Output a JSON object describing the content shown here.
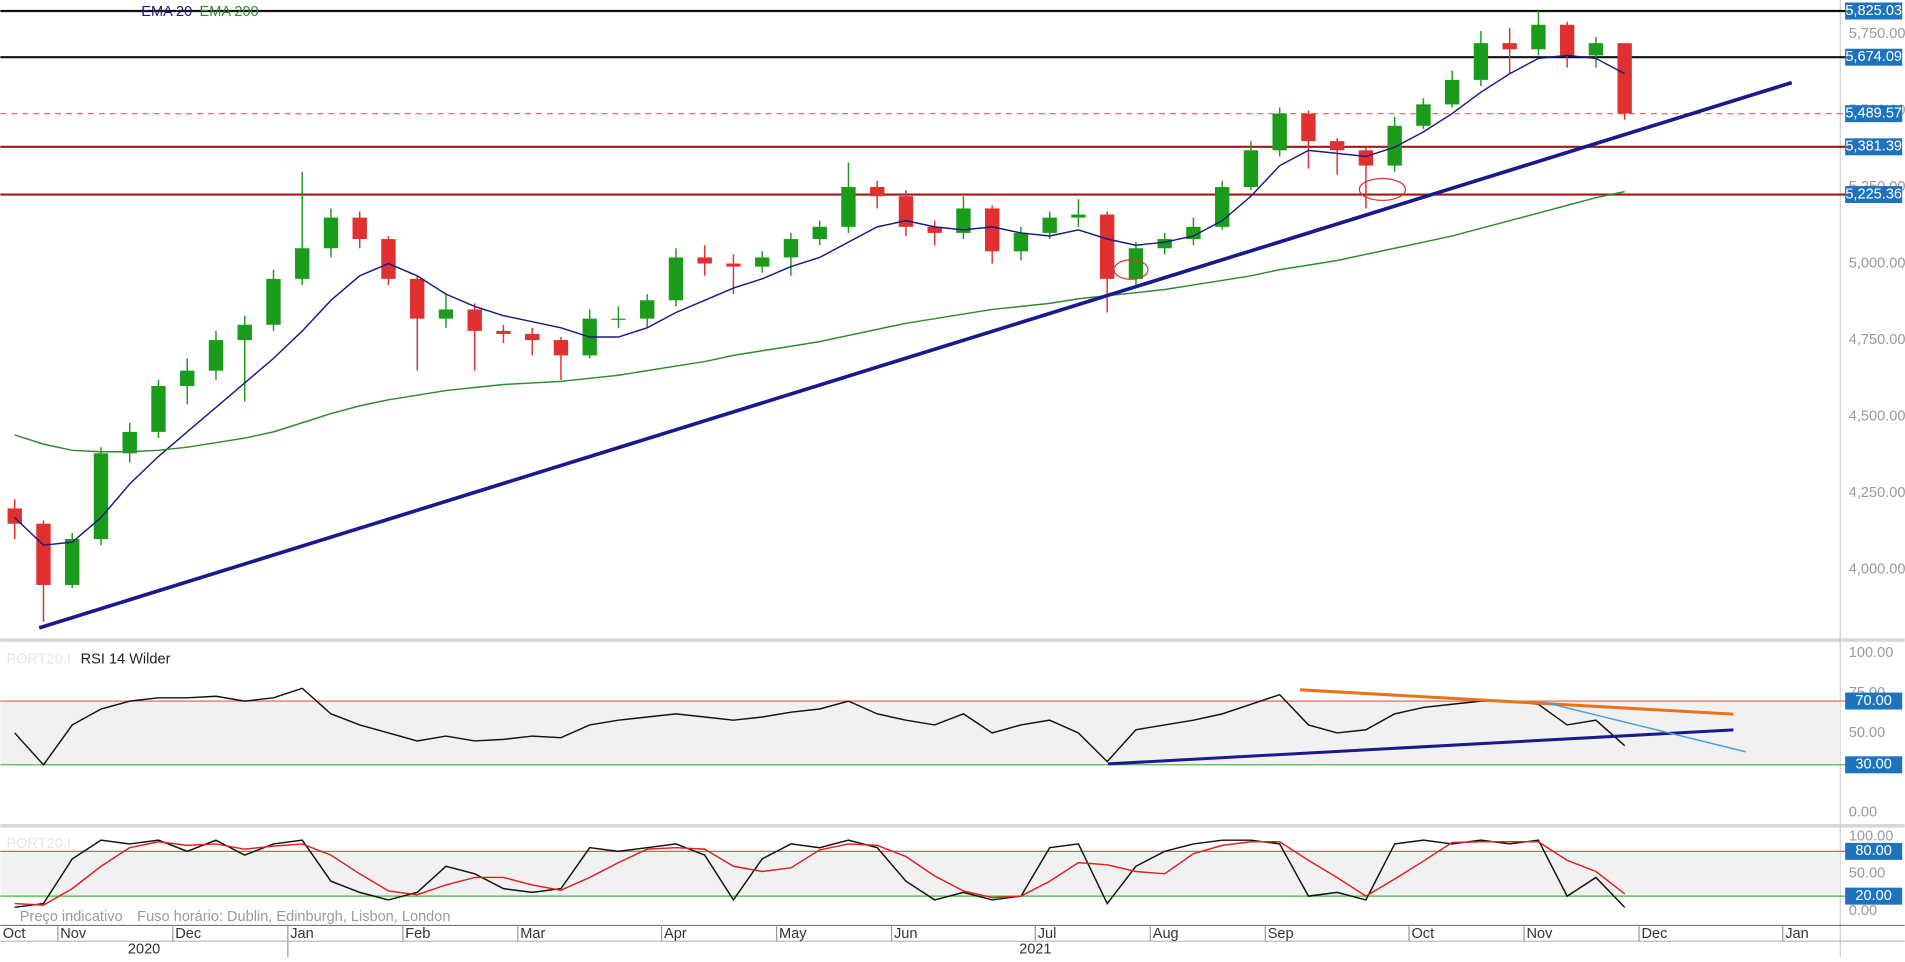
{
  "chart_data": [
    {
      "type": "candlestick",
      "colors": {
        "up": "#1a9c1a",
        "down": "#e03030"
      },
      "open": [
        4200,
        4150,
        3950,
        4100,
        4380,
        4450,
        4600,
        4650,
        4750,
        4800,
        4950,
        5050,
        5150,
        5080,
        4950,
        4820,
        4850,
        4780,
        4770,
        4750,
        4700,
        4820,
        4820,
        4880,
        5020,
        5000,
        4990,
        5020,
        5080,
        5120,
        5250,
        5220,
        5120,
        5100,
        5180,
        5040,
        5100,
        5150,
        5160,
        4950,
        5050,
        5080,
        5120,
        5250,
        5370,
        5490,
        5400,
        5370,
        5320,
        5450,
        5520,
        5600,
        5720,
        5700,
        5780,
        5680,
        5720,
        null,
        null,
        null,
        null,
        null,
        null,
        null
      ],
      "high": [
        4230,
        4160,
        4120,
        4400,
        4480,
        4620,
        4690,
        4780,
        4830,
        4980,
        5300,
        5180,
        5170,
        5090,
        4960,
        4900,
        4870,
        4800,
        4790,
        4760,
        4850,
        4860,
        4900,
        5050,
        5060,
        5030,
        5040,
        5100,
        5140,
        5330,
        5270,
        5240,
        5140,
        5220,
        5190,
        5120,
        5170,
        5210,
        5170,
        5070,
        5100,
        5150,
        5270,
        5400,
        5510,
        5500,
        5410,
        5380,
        5480,
        5540,
        5630,
        5760,
        5770,
        5825,
        5790,
        5740,
        5720,
        null,
        null,
        null,
        null,
        null,
        null,
        null
      ],
      "low": [
        4100,
        3830,
        3940,
        4080,
        4350,
        4430,
        4540,
        4620,
        4550,
        4780,
        4930,
        5020,
        5050,
        4930,
        4650,
        4790,
        4650,
        4740,
        4700,
        4620,
        4690,
        4790,
        4790,
        4860,
        4960,
        4900,
        4970,
        4960,
        5060,
        5100,
        5180,
        5090,
        5060,
        5080,
        5000,
        5010,
        5080,
        5120,
        4840,
        4930,
        5030,
        5060,
        5110,
        5240,
        5350,
        5310,
        5290,
        5180,
        5300,
        5440,
        5510,
        5580,
        5620,
        5680,
        5640,
        5640,
        5470,
        null,
        null,
        null,
        null,
        null,
        null,
        null
      ],
      "close": [
        4150,
        3950,
        4100,
        4380,
        4450,
        4600,
        4650,
        4750,
        4800,
        4950,
        5050,
        5150,
        5080,
        4950,
        4820,
        4850,
        4780,
        4770,
        4750,
        4700,
        4820,
        4820,
        4880,
        5020,
        5000,
        4990,
        5020,
        5080,
        5120,
        5250,
        5220,
        5120,
        5100,
        5180,
        5040,
        5100,
        5150,
        5160,
        4950,
        5050,
        5080,
        5120,
        5250,
        5370,
        5490,
        5400,
        5370,
        5320,
        5450,
        5520,
        5600,
        5720,
        5700,
        5780,
        5680,
        5720,
        5490,
        null,
        null,
        null,
        null,
        null,
        null,
        null
      ],
      "series": [
        {
          "name": "EMA 20",
          "color": "#1a1a80",
          "values": [
            4170,
            4080,
            4090,
            4170,
            4280,
            4370,
            4450,
            4530,
            4610,
            4690,
            4780,
            4880,
            4960,
            5000,
            4960,
            4900,
            4860,
            4830,
            4810,
            4790,
            4760,
            4760,
            4790,
            4840,
            4880,
            4920,
            4950,
            4990,
            5020,
            5070,
            5120,
            5140,
            5120,
            5110,
            5120,
            5100,
            5090,
            5110,
            5080,
            5060,
            5070,
            5090,
            5140,
            5220,
            5320,
            5370,
            5360,
            5350,
            5380,
            5430,
            5490,
            5560,
            5620,
            5670,
            5680,
            5670,
            5620,
            null,
            null,
            null,
            null,
            null,
            null,
            null
          ]
        },
        {
          "name": "EMA 200",
          "color": "#2e8b2e",
          "values": [
            4440,
            4410,
            4390,
            4385,
            4385,
            4390,
            4400,
            4415,
            4430,
            4450,
            4480,
            4510,
            4535,
            4555,
            4570,
            4585,
            4595,
            4605,
            4610,
            4615,
            4625,
            4635,
            4650,
            4665,
            4680,
            4700,
            4715,
            4730,
            4745,
            4765,
            4785,
            4805,
            4820,
            4835,
            4850,
            4860,
            4870,
            4885,
            4895,
            4905,
            4915,
            4930,
            4945,
            4960,
            4980,
            4995,
            5010,
            5030,
            5050,
            5070,
            5090,
            5115,
            5140,
            5165,
            5190,
            5215,
            5235,
            null,
            null,
            null,
            null,
            null,
            null,
            null
          ]
        }
      ],
      "ylim": [
        3778,
        5861
      ],
      "yticks": [
        {
          "value": 4000,
          "label": "4,000.00"
        },
        {
          "value": 4250,
          "label": "4,250.00"
        },
        {
          "value": 4500,
          "label": "4,500.00"
        },
        {
          "value": 4750,
          "label": "4,750.00"
        },
        {
          "value": 5000,
          "label": "5,000.00"
        },
        {
          "value": 5250,
          "label": "5,250.00"
        },
        {
          "value": 5500,
          "label": "5,500.00"
        },
        {
          "value": 5750,
          "label": "5,750.00"
        }
      ],
      "levels": [
        {
          "value": 5825.03,
          "label": "5,825.03",
          "color": "#111111",
          "dashed": false
        },
        {
          "value": 5674.09,
          "label": "5,674.09",
          "color": "#111111",
          "dashed": false
        },
        {
          "value": 5489.57,
          "label": "5,489.57",
          "color": "#e06060",
          "dashed": true
        },
        {
          "value": 5381.39,
          "label": "5,381.39",
          "color": "#a01818",
          "dashed": false
        },
        {
          "value": 5225.36,
          "label": "5,225.36",
          "color": "#a01818",
          "dashed": false
        }
      ]
    },
    {
      "type": "line",
      "instrument": "PORT20.I",
      "series": [
        {
          "name": "RSI 14 Wilder",
          "color": "#111111",
          "values": [
            50,
            30,
            55,
            65,
            70,
            72,
            72,
            73,
            70,
            72,
            78,
            62,
            55,
            50,
            45,
            48,
            45,
            46,
            48,
            47,
            55,
            58,
            60,
            62,
            60,
            58,
            60,
            63,
            65,
            70,
            62,
            58,
            55,
            62,
            50,
            55,
            58,
            50,
            32,
            52,
            55,
            58,
            62,
            68,
            74,
            55,
            50,
            52,
            62,
            66,
            68,
            70,
            70,
            68,
            55,
            58,
            42,
            null,
            null,
            null,
            null,
            null,
            null,
            null
          ]
        }
      ],
      "ylim": [
        -6,
        106
      ],
      "yticks": [
        {
          "value": 0,
          "label": "0.00"
        },
        {
          "value": 50,
          "label": "50.00"
        },
        {
          "value": 75,
          "label": "75.00"
        },
        {
          "value": 100,
          "label": "100.00"
        }
      ],
      "levels": [
        {
          "value": 70,
          "label": "70.00",
          "color": "#e05a5a"
        },
        {
          "value": 30,
          "label": "30.00",
          "color": "#3cb83c"
        }
      ]
    },
    {
      "type": "line",
      "instrument": "PORT20.I",
      "series": [
        {
          "color": "#111111",
          "values": [
            5,
            10,
            70,
            95,
            90,
            95,
            80,
            95,
            75,
            90,
            95,
            40,
            25,
            15,
            25,
            60,
            50,
            30,
            25,
            30,
            85,
            80,
            85,
            90,
            75,
            15,
            70,
            90,
            85,
            95,
            85,
            40,
            15,
            25,
            15,
            20,
            85,
            90,
            10,
            60,
            80,
            90,
            95,
            95,
            90,
            20,
            25,
            15,
            90,
            95,
            90,
            95,
            90,
            95,
            20,
            45,
            5,
            null,
            null,
            null,
            null,
            null,
            null,
            null
          ]
        },
        {
          "color": "#e02020",
          "values": [
            10,
            8,
            30,
            60,
            85,
            93,
            88,
            90,
            83,
            87,
            90,
            75,
            50,
            27,
            22,
            35,
            45,
            45,
            35,
            28,
            45,
            65,
            83,
            85,
            83,
            60,
            53,
            58,
            82,
            90,
            88,
            73,
            47,
            27,
            18,
            20,
            40,
            65,
            62,
            53,
            50,
            77,
            88,
            93,
            93,
            68,
            45,
            20,
            43,
            67,
            92,
            93,
            93,
            93,
            68,
            53,
            23,
            null,
            null,
            null,
            null,
            null,
            null,
            null
          ]
        }
      ],
      "ylim": [
        -16,
        111
      ],
      "yticks": [
        {
          "value": 0,
          "label": "0.00"
        },
        {
          "value": 50,
          "label": "50.00"
        },
        {
          "value": 100,
          "label": "100.00"
        }
      ],
      "levels": [
        {
          "value": 80,
          "label": "80.00",
          "color": "#e05a5a"
        },
        {
          "value": 20,
          "label": "20.00",
          "color": "#3cb83c"
        }
      ],
      "categories": [
        "Oct",
        null,
        "Nov",
        null,
        null,
        null,
        "Dec",
        null,
        null,
        null,
        "Jan",
        null,
        null,
        null,
        "Feb",
        null,
        null,
        null,
        "Mar",
        null,
        null,
        null,
        null,
        "Apr",
        null,
        null,
        null,
        "May",
        null,
        null,
        null,
        "Jun",
        null,
        null,
        null,
        null,
        "Jul",
        null,
        null,
        null,
        "Aug",
        null,
        null,
        null,
        "Sep",
        null,
        null,
        null,
        null,
        "Oct",
        null,
        null,
        null,
        "Nov",
        null,
        null,
        null,
        "Dec",
        null,
        null,
        null,
        null,
        "Jan",
        null
      ],
      "year_labels": [
        "2020",
        "2021"
      ],
      "annotations": [
        "Preço indicativo",
        "Fuso horário: Dublin, Edinburgh, Lisbon, London"
      ]
    }
  ]
}
